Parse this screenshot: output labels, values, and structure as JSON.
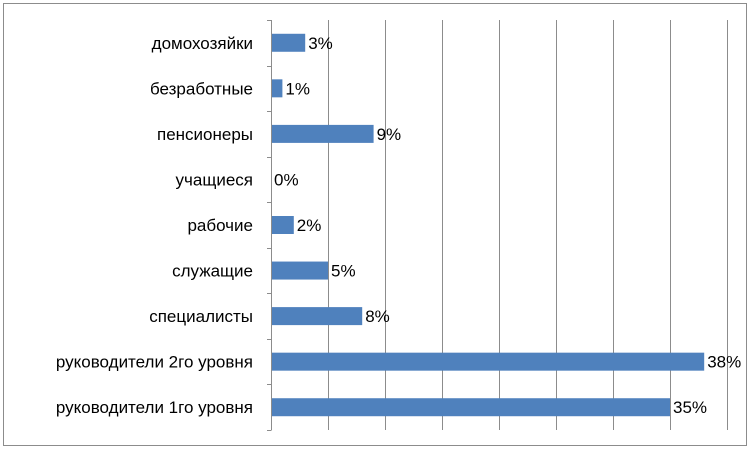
{
  "chart_data": {
    "type": "bar",
    "orientation": "horizontal",
    "categories": [
      "домохозяйки",
      "безработные",
      "пенсионеры",
      "учащиеся",
      "рабочие",
      "служащие",
      "специалисты",
      "руководители 2го уровня",
      "руководители 1го уровня"
    ],
    "values": [
      3,
      1,
      9,
      0,
      2,
      5,
      8,
      38,
      35
    ],
    "value_labels": [
      "3%",
      "1%",
      "9%",
      "0%",
      "2%",
      "5%",
      "8%",
      "38%",
      "35%"
    ],
    "xlim": [
      0,
      40
    ],
    "x_gridlines": true,
    "legend": "none",
    "bar_color": "#4f81bd"
  }
}
